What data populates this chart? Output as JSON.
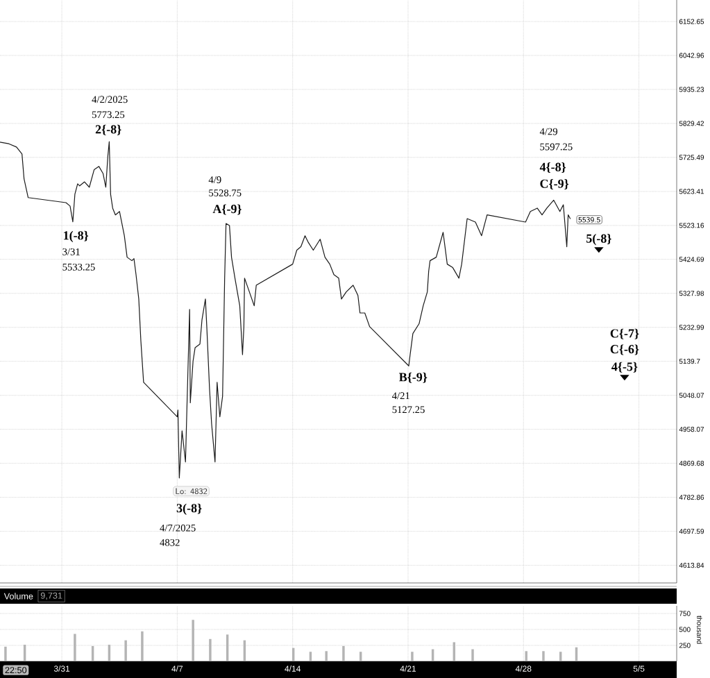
{
  "chart_data": [
    {
      "type": "line",
      "color": "#1a1a1a",
      "log": true,
      "grid": true,
      "tick_labels": "y",
      "xlim": [
        "2025-03-27T06:00",
        "2025-05-07T07:00"
      ],
      "ylim": [
        4571,
        6223
      ],
      "xticks": [
        {
          "value": "2025-03-31",
          "label": null
        },
        {
          "value": "2025-04-07",
          "label": null
        },
        {
          "value": "2025-04-14",
          "label": null
        },
        {
          "value": "2025-04-21",
          "label": null
        },
        {
          "value": "2025-04-28",
          "label": null
        },
        {
          "value": "2025-05-05",
          "label": null
        }
      ],
      "yticks": [
        4613.84,
        4697.59,
        4782.86,
        4869.68,
        4958.07,
        5048.07,
        5139.7,
        5232.99,
        5327.98,
        5424.69,
        5523.16,
        5623.41,
        5725.49,
        5829.42,
        5935.23,
        6042.96,
        6152.65
      ],
      "x": [
        "2025-03-27T06:00",
        "2025-03-27T19:00",
        "2025-03-28T06:00",
        "2025-03-28T14:00",
        "2025-03-28T17:00",
        "2025-03-28T23:00",
        "2025-03-31T06:00",
        "2025-03-31T12:00",
        "2025-03-31T16:00",
        "2025-03-31T19:00",
        "2025-03-31T23:00",
        "2025-04-01T02:00",
        "2025-04-01T09:00",
        "2025-04-01T16:00",
        "2025-04-01T23:00",
        "2025-04-02T06:00",
        "2025-04-02T12:00",
        "2025-04-02T16:00",
        "2025-04-02T19:00",
        "2025-04-02T21:00",
        "2025-04-02T23:00",
        "2025-04-03T02:00",
        "2025-04-03T06:00",
        "2025-04-03T12:00",
        "2025-04-03T19:00",
        "2025-04-03T23:00",
        "2025-04-04T06:00",
        "2025-04-04T09:00",
        "2025-04-04T12:00",
        "2025-04-04T16:00",
        "2025-04-04T19:00",
        "2025-04-04T23:00",
        "2025-04-07T00:00",
        "2025-04-07T01:00",
        "2025-04-07T03:00",
        "2025-04-07T07:00",
        "2025-04-07T12:00",
        "2025-04-07T14:00",
        "2025-04-07T18:00",
        "2025-04-07T19:00",
        "2025-04-07T23:00",
        "2025-04-08T02:00",
        "2025-04-08T09:00",
        "2025-04-08T12:00",
        "2025-04-08T17:00",
        "2025-04-08T19:00",
        "2025-04-08T23:00",
        "2025-04-09T02:00",
        "2025-04-09T07:00",
        "2025-04-09T10:00",
        "2025-04-09T14:00",
        "2025-04-09T18:00",
        "2025-04-09T21:00",
        "2025-04-09T23:00",
        "2025-04-10T04:00",
        "2025-04-10T07:00",
        "2025-04-10T12:00",
        "2025-04-10T19:00",
        "2025-04-10T23:00",
        "2025-04-11T01:00",
        "2025-04-11T02:00",
        "2025-04-11T09:00",
        "2025-04-11T16:00",
        "2025-04-11T19:00",
        "2025-04-14T00:00",
        "2025-04-14T06:00",
        "2025-04-14T12:00",
        "2025-04-14T18:00",
        "2025-04-14T23:00",
        "2025-04-15T06:00",
        "2025-04-15T16:00",
        "2025-04-15T23:00",
        "2025-04-16T06:00",
        "2025-04-16T12:00",
        "2025-04-16T19:00",
        "2025-04-16T23:00",
        "2025-04-17T06:00",
        "2025-04-17T16:00",
        "2025-04-17T23:00",
        "2025-04-18T02:00",
        "2025-04-18T09:00",
        "2025-04-18T16:00",
        "2025-04-21T01:00",
        "2025-04-21T03:00",
        "2025-04-21T07:00",
        "2025-04-21T16:00",
        "2025-04-21T22:00",
        "2025-04-22T04:00",
        "2025-04-22T06:00",
        "2025-04-22T08:00",
        "2025-04-22T17:00",
        "2025-04-23T03:00",
        "2025-04-23T09:00",
        "2025-04-23T17:00",
        "2025-04-24T02:00",
        "2025-04-24T06:00",
        "2025-04-24T14:00",
        "2025-04-25T02:00",
        "2025-04-25T11:00",
        "2025-04-25T19:00",
        "2025-04-28T03:00",
        "2025-04-28T10:00",
        "2025-04-28T20:00",
        "2025-04-29T03:00",
        "2025-04-29T10:00",
        "2025-04-29T20:00",
        "2025-04-30T05:00",
        "2025-04-30T10:00",
        "2025-04-30T15:00",
        "2025-04-30T17:00",
        "2025-04-30T20:00"
      ],
      "values": [
        5772,
        5767,
        5757,
        5736,
        5661,
        5605,
        5590,
        5580,
        5533.25,
        5615,
        5646,
        5640,
        5652,
        5636,
        5688,
        5698,
        5677,
        5636,
        5730,
        5773.25,
        5615,
        5574,
        5554,
        5564,
        5493,
        5431,
        5421,
        5427,
        5381,
        5312,
        5197,
        5083,
        4991,
        5009,
        4832,
        4954,
        4873,
        5009,
        5283,
        5028,
        5140,
        5177,
        5187,
        5254,
        5312,
        5235,
        5065,
        4973,
        4873,
        5083,
        4991,
        5046,
        5371,
        5528.75,
        5523,
        5431,
        5371,
        5293,
        5158,
        5235,
        5371,
        5332,
        5293,
        5351,
        5411,
        5451,
        5461,
        5493,
        5473,
        5451,
        5483,
        5431,
        5411,
        5381,
        5371,
        5312,
        5332,
        5351,
        5322,
        5273,
        5273,
        5235,
        5127.25,
        5158,
        5216,
        5243,
        5293,
        5332,
        5391,
        5421,
        5431,
        5503,
        5411,
        5401,
        5371,
        5411,
        5543,
        5533,
        5493,
        5554,
        5533,
        5564,
        5574,
        5554,
        5574,
        5597.25,
        5564,
        5584,
        5461,
        5554,
        5543
      ],
      "annotations": [
        {
          "text": "1(-8}",
          "x": "2025-03-31T16:00",
          "y": 5533.25
        },
        {
          "text": "3/31",
          "x": "2025-03-31T16:00",
          "y": 5533.25
        },
        "5533.25",
        "4/2/2025",
        {
          "text": "5773.25",
          "x": "2025-04-02T21:00",
          "y": 5773.25
        },
        {
          "text": "2{-8}",
          "x": "2025-04-02T21:00",
          "y": 5773.25
        },
        {
          "text": "Lo: 4832",
          "x": "2025-04-07T03:00",
          "y": 4832
        },
        {
          "text": "3(-8}",
          "x": "2025-04-07T03:00",
          "y": 4832
        },
        "4/7/2025",
        "4832",
        "4/9",
        {
          "text": "5528.75",
          "x": "2025-04-09T23:00",
          "y": 5528.75
        },
        {
          "text": "A{-9}",
          "x": "2025-04-09T23:00",
          "y": 5528.75
        },
        {
          "text": "B{-9}",
          "x": "2025-04-21T01:00",
          "y": 5127.25
        },
        {
          "text": "4/21",
          "x": "2025-04-21T01:00",
          "y": 5127.25
        },
        "5127.25",
        "4/29",
        "5597.25",
        {
          "text": "4{-8}",
          "x": "2025-04-29T20:00",
          "y": 5597.25
        },
        {
          "text": "C{-9}",
          "x": "2025-04-29T20:00",
          "y": 5597.25
        },
        "5(-8}",
        "C{-7}",
        "C{-6}",
        "4{-5}",
        "5539.5"
      ]
    },
    {
      "type": "bar",
      "title": "Volume",
      "color": "#b4b4b4",
      "grid": true,
      "ylabel": "thousand",
      "xlim": [
        "2025-03-27T06:00",
        "2025-05-07T07:00"
      ],
      "ylim": [
        0,
        870
      ],
      "xticks": [
        {
          "value": "2025-03-31",
          "label": "3/31"
        },
        {
          "value": "2025-04-07",
          "label": "4/7"
        },
        {
          "value": "2025-04-14",
          "label": "4/14"
        },
        {
          "value": "2025-04-21",
          "label": "4/21"
        },
        {
          "value": "2025-04-28",
          "label": "4/28"
        },
        {
          "value": "2025-05-05",
          "label": "5/5"
        }
      ],
      "yticks": [
        250,
        500,
        750
      ],
      "x": [
        "2025-03-27T14:00",
        "2025-03-28T18:00",
        "2025-03-31T19:00",
        "2025-04-01T21:00",
        "2025-04-02T21:00",
        "2025-04-03T21:00",
        "2025-04-04T21:00",
        "2025-04-07T23:00",
        "2025-04-09T00:00",
        "2025-04-10T01:00",
        "2025-04-11T02:00",
        "2025-04-14T01:00",
        "2025-04-15T02:00",
        "2025-04-16T01:00",
        "2025-04-17T02:00",
        "2025-04-18T03:00",
        "2025-04-21T06:00",
        "2025-04-22T12:00",
        "2025-04-23T19:00",
        "2025-04-24T22:00",
        "2025-04-28T04:00",
        "2025-04-29T05:00",
        "2025-04-30T06:00",
        "2025-05-01T05:00"
      ],
      "values": [
        230,
        260,
        430,
        240,
        260,
        330,
        470,
        650,
        350,
        420,
        330,
        210,
        150,
        160,
        240,
        150,
        150,
        190,
        300,
        190,
        160,
        160,
        150,
        220
      ],
      "annotations": [
        "9,731",
        "22:50"
      ]
    }
  ]
}
